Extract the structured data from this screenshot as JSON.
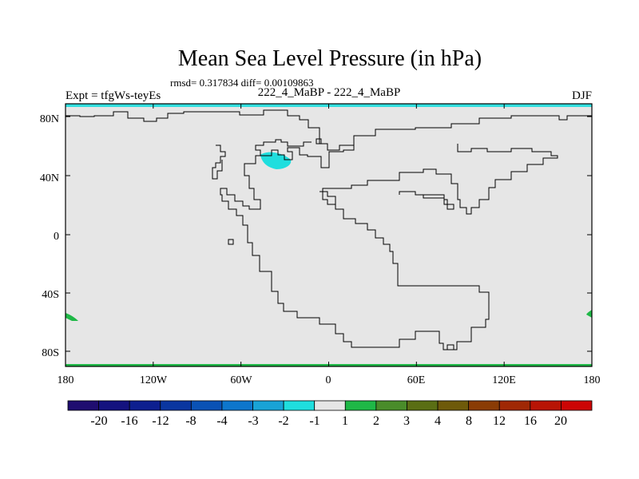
{
  "chart_data": {
    "type": "heatmap",
    "title": "Mean Sea Level Pressure (in hPa)",
    "subtitle_stats": "rmsd= 0.317834 diff= 0.00109863",
    "left_label": "Expt = tfgWs-teyEs",
    "center_label": "222_4_MaBP - 222_4_MaBP",
    "right_label": "DJF",
    "x_ticks": [
      "180",
      "120W",
      "60W",
      "0",
      "60E",
      "120E",
      "180"
    ],
    "y_ticks": [
      "80N",
      "40N",
      "0",
      "40S",
      "80S"
    ],
    "colorbar_labels": [
      "-20",
      "-16",
      "-12",
      "-8",
      "-4",
      "-3",
      "-2",
      "-1",
      "1",
      "2",
      "3",
      "4",
      "8",
      "12",
      "16",
      "20"
    ],
    "colorbar_colors": [
      "#1f0d70",
      "#14127f",
      "#0d1f8f",
      "#0a36a0",
      "#0a52b5",
      "#0d76cc",
      "#19a3d6",
      "#1fdede",
      "#e6e6e6",
      "#1fb847",
      "#4a8c2a",
      "#5a6e14",
      "#6e5a0a",
      "#8a3c05",
      "#a02805",
      "#b81405",
      "#cc0505"
    ],
    "background_color": "#e6e6e6",
    "features": [
      "Small -1 to -2 hPa anomaly (cyan) near 50N 40W",
      "Weak +1 to +2 hPa anomalies (green) along polar edges"
    ]
  }
}
